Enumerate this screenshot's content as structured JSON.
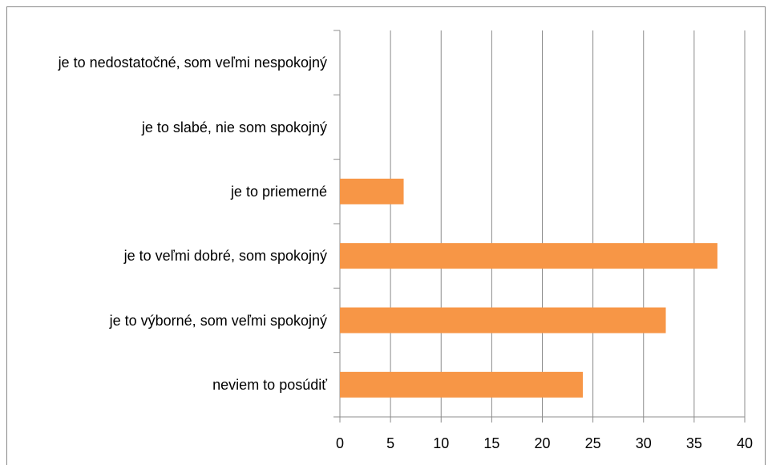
{
  "chart_data": {
    "type": "bar",
    "orientation": "horizontal",
    "categories": [
      "je to nedostatočné, som veľmi nespokojný",
      "je to slabé, nie som spokojný",
      "je to priemerné",
      "je to veľmi dobré, som spokojný",
      "je to výborné, som veľmi spokojný",
      "neviem to posúdiť"
    ],
    "values": [
      0,
      0,
      6.3,
      37.3,
      32.2,
      24
    ],
    "color": "#f79646",
    "xlim": [
      0,
      40
    ],
    "xticks": [
      0,
      5,
      10,
      15,
      20,
      25,
      30,
      35,
      40
    ],
    "grid": true
  }
}
